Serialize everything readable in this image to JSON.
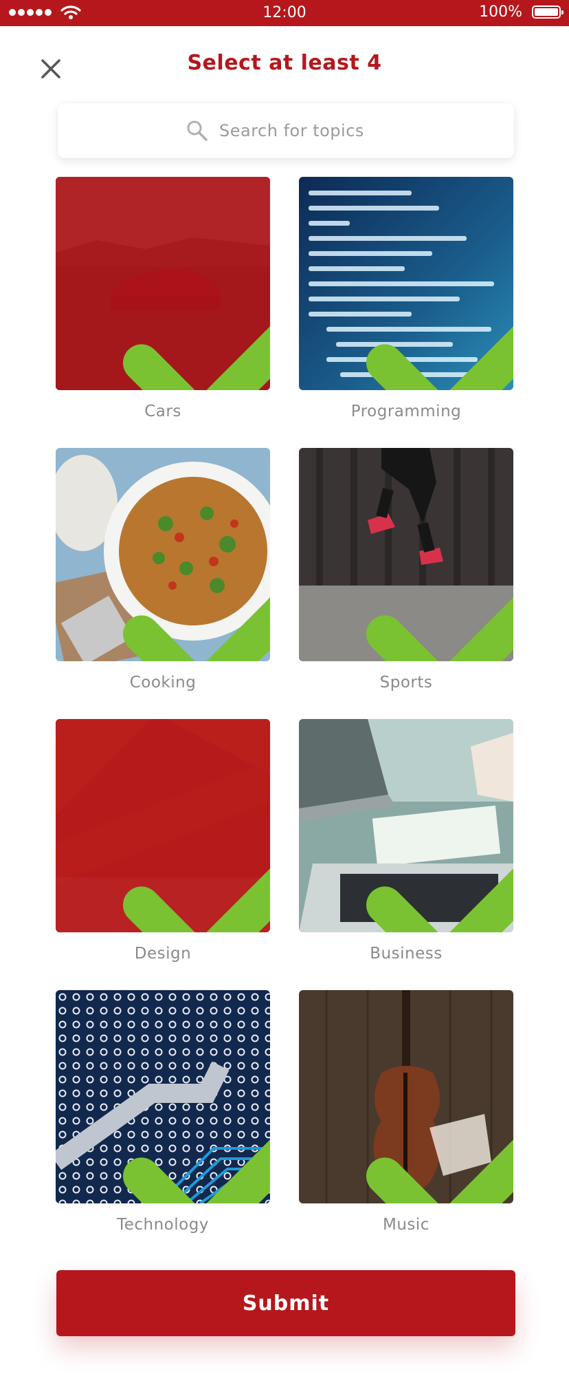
{
  "status_bar": {
    "time": "12:00",
    "battery": "100%"
  },
  "header": {
    "title": "Select at least 4"
  },
  "search": {
    "placeholder": "Search for topics"
  },
  "topics": [
    {
      "label": "Cars",
      "selected": true
    },
    {
      "label": "Programming",
      "selected": false
    },
    {
      "label": "Cooking",
      "selected": false
    },
    {
      "label": "Sports",
      "selected": false
    },
    {
      "label": "Design",
      "selected": true
    },
    {
      "label": "Business",
      "selected": false
    },
    {
      "label": "Technology",
      "selected": false
    },
    {
      "label": "Music",
      "selected": false
    }
  ],
  "submit": {
    "label": "Submit"
  },
  "colors": {
    "accent": "#b5171c",
    "check": "#7ac231",
    "label": "#8a8a8a"
  }
}
